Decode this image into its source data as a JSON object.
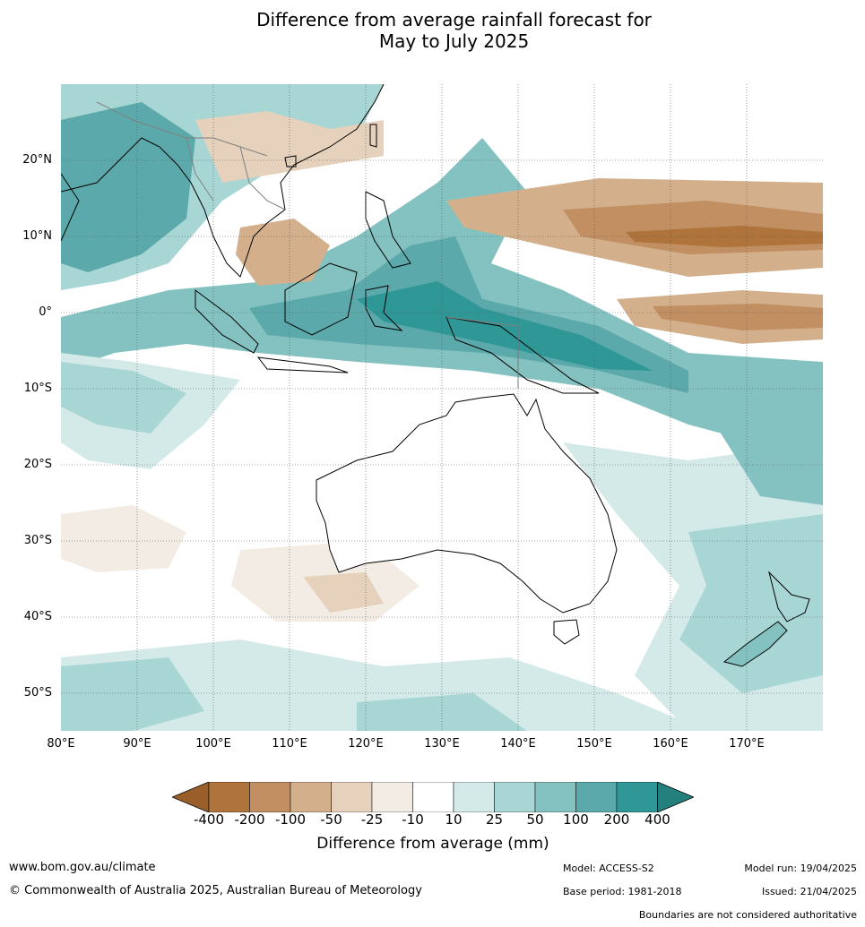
{
  "title": {
    "line1": "Difference from average rainfall forecast for",
    "line2": "May to July 2025"
  },
  "map": {
    "latitude_labels": [
      "20°N",
      "10°N",
      "0°",
      "10°S",
      "20°S",
      "30°S",
      "40°S",
      "50°S"
    ],
    "longitude_labels": [
      "80°E",
      "90°E",
      "100°E",
      "110°E",
      "120°E",
      "130°E",
      "140°E",
      "150°E",
      "160°E",
      "170°E"
    ],
    "lon_range": [
      80,
      180
    ],
    "lat_range": [
      -55,
      30
    ],
    "palette": {
      "-400": "#9a5e2a",
      "-200": "#ae743b",
      "-100": "#c28f62",
      "-50": "#d3b08b",
      "-25": "#e5d1bc",
      "-10": "#f2ece4",
      "10": "#ffffff",
      "25": "#d4eae8",
      "50": "#a7d6d4",
      "100": "#83c2c1",
      "200": "#5ba9aa",
      "400": "#2f9796",
      "max": "#23807d"
    },
    "coastline_color": "#000000",
    "border_color": "#808080",
    "grid_color": "#555555"
  },
  "colorbar": {
    "ticks": [
      "-400",
      "-200",
      "-100",
      "-50",
      "-25",
      "-10",
      "10",
      "25",
      "50",
      "100",
      "200",
      "400"
    ],
    "colors": [
      "#ae743b",
      "#c28f62",
      "#d3b08b",
      "#e5d1bc",
      "#f2ece4",
      "#ffffff",
      "#d4eae8",
      "#a7d6d4",
      "#83c2c1",
      "#5ba9aa",
      "#2f9796"
    ],
    "low_extend_color": "#9a5e2a",
    "high_extend_color": "#23807d",
    "label": "Difference from average (mm)"
  },
  "footer": {
    "website": "www.bom.gov.au/climate",
    "copyright": "© Commonwealth of Australia 2025, Australian Bureau of Meteorology",
    "model": "Model: ACCESS-S2",
    "base_period": "Base period: 1981-2018",
    "model_run": "Model run: 19/04/2025",
    "issued": "Issued: 21/04/2025",
    "disclaimer": "Boundaries are not considered authoritative"
  }
}
